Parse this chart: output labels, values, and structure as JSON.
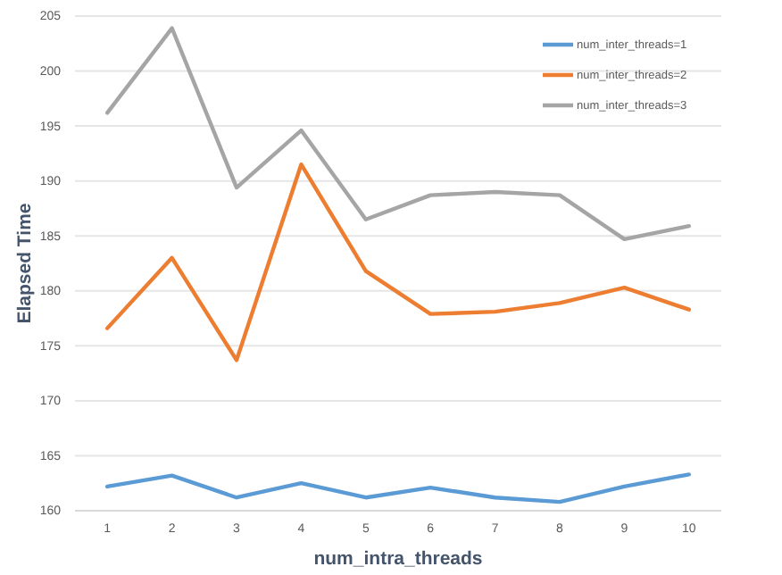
{
  "chart_data": {
    "type": "line",
    "xlabel": "num_intra_threads",
    "ylabel": "Elapsed Time",
    "categories": [
      "1",
      "2",
      "3",
      "4",
      "5",
      "6",
      "7",
      "8",
      "9",
      "10"
    ],
    "series": [
      {
        "name": "num_inter_threads=1",
        "color": "#5b9bd5",
        "values": [
          162.2,
          163.2,
          161.2,
          162.5,
          161.2,
          162.1,
          161.2,
          160.8,
          162.2,
          163.3
        ]
      },
      {
        "name": "num_inter_threads=2",
        "color": "#ed7d31",
        "values": [
          176.6,
          183.0,
          173.7,
          191.5,
          181.8,
          177.9,
          178.1,
          178.9,
          180.3,
          178.3
        ]
      },
      {
        "name": "num_inter_threads=3",
        "color": "#a5a5a5",
        "values": [
          196.2,
          203.9,
          189.4,
          194.6,
          186.5,
          188.7,
          189.0,
          188.7,
          184.7,
          185.9
        ]
      }
    ],
    "ylim": [
      160,
      205
    ],
    "yticks": [
      160,
      165,
      170,
      175,
      180,
      185,
      190,
      195,
      200,
      205
    ],
    "grid": "y",
    "legend": "top right",
    "marker": "none",
    "line_style": "solid"
  }
}
